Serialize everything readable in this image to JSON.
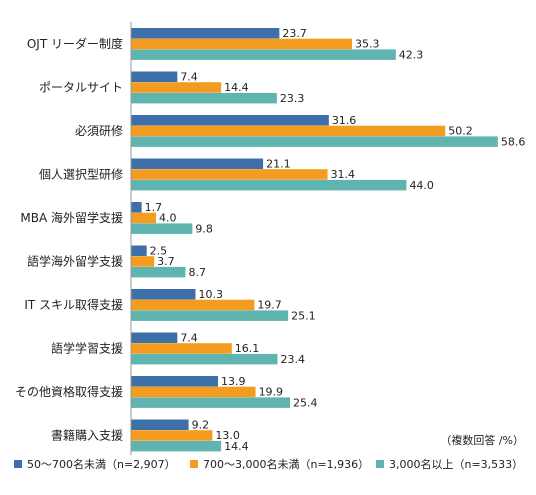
{
  "chart_data": {
    "type": "bar",
    "orientation": "horizontal",
    "categories": [
      "OJT リーダー制度",
      "ポータルサイト",
      "必須研修",
      "個人選択型研修",
      "MBA 海外留学支援",
      "語学海外留学支援",
      "IT スキル取得支援",
      "語学学習支援",
      "その他資格取得支援",
      "書籍購入支援"
    ],
    "series": [
      {
        "name": "50～700名未満（n=2,907）",
        "color": "#3d6fa8",
        "values": [
          23.7,
          7.4,
          31.6,
          21.1,
          1.7,
          2.5,
          10.3,
          7.4,
          13.9,
          9.2
        ],
        "labels": [
          "23.7",
          "7.4",
          "31.6",
          "21.1",
          "1.7",
          "2.5",
          "10.3",
          "7.4",
          "13.9",
          "9.2"
        ]
      },
      {
        "name": "700～3,000名未満（n=1,936）",
        "color": "#f39c1f",
        "values": [
          35.3,
          14.4,
          50.2,
          31.4,
          4.0,
          3.7,
          19.7,
          16.1,
          19.9,
          13.0
        ],
        "labels": [
          "35.3",
          "14.4",
          "50.2",
          "31.4",
          "4.0",
          "3.7",
          "19.7",
          "16.1",
          "19.9",
          "13.0"
        ]
      },
      {
        "name": "3,000名以上（n=3,533）",
        "color": "#5fb4b0",
        "values": [
          42.3,
          23.3,
          58.6,
          44.0,
          9.8,
          8.7,
          25.1,
          23.4,
          25.4,
          14.4
        ],
        "labels": [
          "42.3",
          "23.3",
          "58.6",
          "44.0",
          "9.8",
          "8.7",
          "25.1",
          "23.4",
          "25.4",
          "14.4"
        ]
      }
    ],
    "xlim": [
      0,
      60
    ],
    "grid": false,
    "legend_position": "bottom",
    "note": "（複数回答 /%）"
  }
}
